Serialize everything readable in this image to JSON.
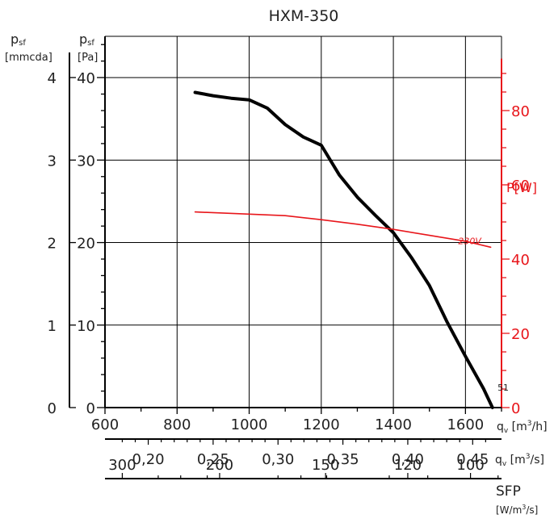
{
  "chart_data": {
    "type": "line",
    "title": "HXM-350",
    "x_axis": {
      "unit_main": "q",
      "unit_sub": "v",
      "unit_bracket": "[m",
      "unit_sup": "3",
      "unit_end": "/h]",
      "range": [
        600,
        1700
      ],
      "tick_labels": [
        "600",
        "800",
        "1000",
        "1200",
        "1400",
        "1600"
      ],
      "tick_values": [
        600,
        800,
        1000,
        1200,
        1400,
        1600
      ]
    },
    "y_axis_pa": {
      "label_main": "p",
      "label_sub": "sf",
      "unit": "[Pa]",
      "range": [
        0,
        45
      ],
      "tick_labels": [
        "0",
        "10",
        "20",
        "30",
        "40"
      ],
      "tick_values": [
        0,
        10,
        20,
        30,
        40
      ]
    },
    "y_axis_mmcda": {
      "label_main": "p",
      "label_sub": "sf",
      "unit": "[mmcda]",
      "tick_labels": [
        "0",
        "1",
        "2",
        "3",
        "4"
      ],
      "tick_values_pa": [
        0,
        10,
        20,
        30,
        40
      ]
    },
    "y_axis_power": {
      "label": "P[W]",
      "range": [
        0,
        100
      ],
      "tick_labels": [
        "0",
        "20",
        "40",
        "60",
        "80"
      ],
      "tick_values": [
        0,
        20,
        40,
        60,
        80
      ]
    },
    "secondary_axis_m3s": {
      "unit_main": "q",
      "unit_sub": "v",
      "unit_bracket": "[m",
      "unit_sup": "3",
      "unit_end": "/s]",
      "tick_labels": [
        "0,20",
        "0,25",
        "0,30",
        "0,35",
        "0,40",
        "0,45"
      ],
      "tick_values_m3h": [
        720,
        900,
        1080,
        1260,
        1440,
        1620
      ]
    },
    "sfp_axis": {
      "label": "SFP",
      "unit_pre": "[W/m",
      "unit_sup": "3",
      "unit_end": "/s]",
      "tick_labels": [
        "300",
        "200",
        "150",
        "120",
        "100"
      ],
      "tick_values_m3h": [
        648,
        918,
        1212,
        1440,
        1614
      ]
    },
    "series": [
      {
        "name": "51",
        "axis": "pressure",
        "color": "#000000",
        "x": [
          850,
          900,
          950,
          1000,
          1050,
          1100,
          1150,
          1200,
          1250,
          1300,
          1350,
          1400,
          1450,
          1500,
          1550,
          1600,
          1650,
          1675
        ],
        "y": [
          38.2,
          37.8,
          37.5,
          37.3,
          36.3,
          34.3,
          32.8,
          31.8,
          28.2,
          25.5,
          23.3,
          21.2,
          18.2,
          14.8,
          10.3,
          6.2,
          2.3,
          0
        ]
      },
      {
        "name": "230V",
        "axis": "power",
        "color": "#e8161b",
        "x": [
          850,
          1000,
          1100,
          1200,
          1300,
          1400,
          1500,
          1600,
          1670
        ],
        "y": [
          52.7,
          52.1,
          51.7,
          50.6,
          49.4,
          48.0,
          46.4,
          44.8,
          43.2
        ]
      }
    ],
    "grid": true
  }
}
